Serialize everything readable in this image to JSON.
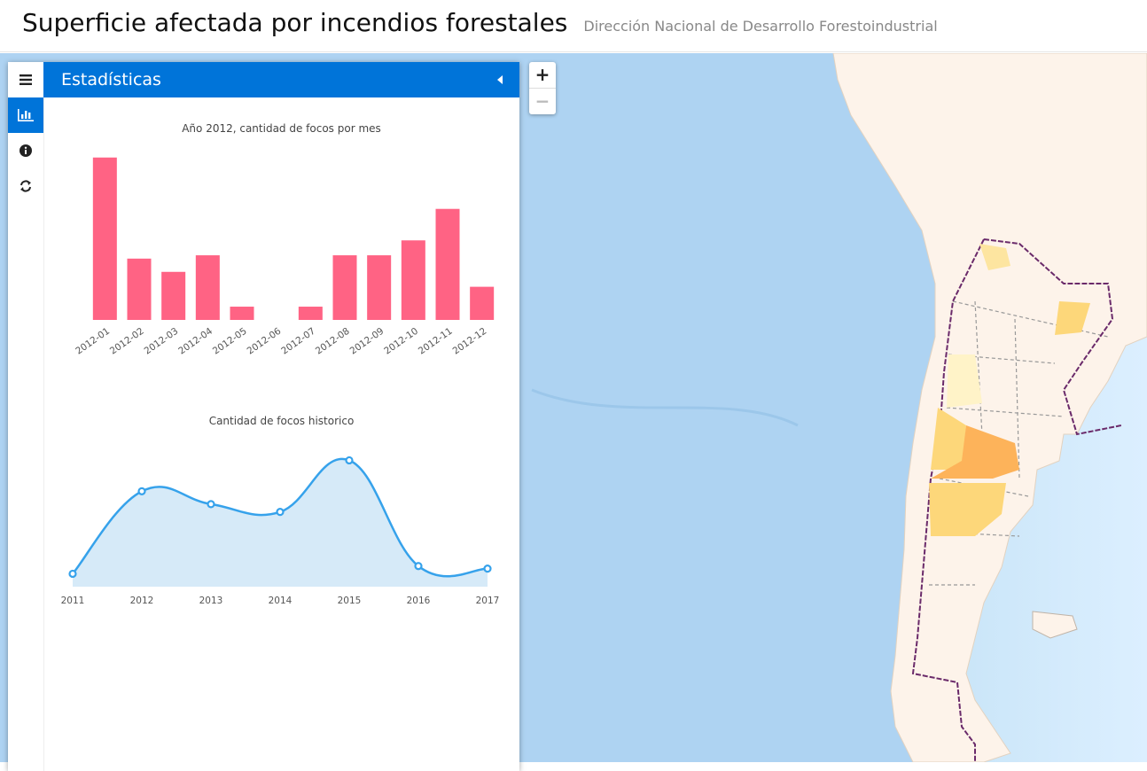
{
  "header": {
    "title": "Superficie afectada por incendios forestales",
    "subtitle": "Dirección Nacional de Desarrollo Forestoindustrial"
  },
  "sidebar": {
    "tabs": [
      {
        "name": "menu",
        "icon": "menu-icon"
      },
      {
        "name": "statistics",
        "icon": "bar-chart-icon",
        "active": true
      },
      {
        "name": "info",
        "icon": "info-icon"
      },
      {
        "name": "refresh",
        "icon": "refresh-icon"
      }
    ],
    "pane_title": "Estadísticas",
    "collapse_icon": "caret-left-icon"
  },
  "map": {
    "zoom_in": "+",
    "zoom_out": "−"
  },
  "colors": {
    "accent": "#0074d9",
    "bar": "#ff6384",
    "line": "#36a2eb",
    "line_fill": "#d6eaf8",
    "ocean": "#aed3f2",
    "land": "#fdf3ea"
  },
  "chart_data": [
    {
      "type": "bar",
      "title": "Año 2012, cantidad de focos por mes",
      "categories": [
        "2012-01",
        "2012-02",
        "2012-03",
        "2012-04",
        "2012-05",
        "2012-06",
        "2012-07",
        "2012-08",
        "2012-09",
        "2012-10",
        "2012-11",
        "2012-12"
      ],
      "values": [
        49,
        18.5,
        14.5,
        19.5,
        4,
        0,
        4,
        19.5,
        19.5,
        24,
        33.5,
        10
      ],
      "ylim": [
        0,
        50
      ]
    },
    {
      "type": "line",
      "title": "Cantidad de focos historico",
      "categories": [
        "2011",
        "2012",
        "2013",
        "2014",
        "2015",
        "2016",
        "2017"
      ],
      "values": [
        5,
        37,
        32,
        29,
        49,
        8,
        7
      ],
      "ylim": [
        0,
        55
      ],
      "smooth": true,
      "filled": true
    }
  ]
}
